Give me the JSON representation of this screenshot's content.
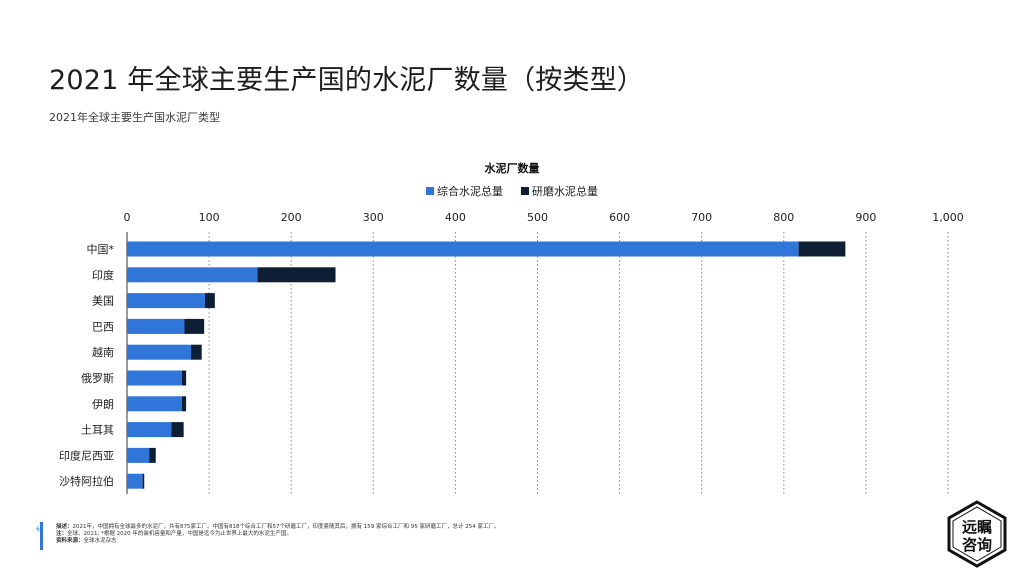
{
  "header": {
    "title": "2021 年全球主要生产国的水泥厂数量（按类型）",
    "subtitle": "2021年全球主要生产国水泥厂类型"
  },
  "chart_data": {
    "type": "bar",
    "orientation": "horizontal",
    "stacked": true,
    "title": "水泥厂数量",
    "categories": [
      "中国*",
      "印度",
      "美国",
      "巴西",
      "越南",
      "俄罗斯",
      "伊朗",
      "土耳其",
      "印度尼西亚",
      "沙特阿拉伯"
    ],
    "series": [
      {
        "name": "综合水泥总量",
        "color": "#2f76d8",
        "values": [
          818,
          159,
          95,
          70,
          78,
          67,
          67,
          54,
          27,
          19
        ]
      },
      {
        "name": "研磨水泥总量",
        "color": "#0e1e33",
        "values": [
          57,
          95,
          12,
          24,
          13,
          5,
          5,
          15,
          8,
          2
        ]
      }
    ],
    "xlim": [
      0,
      1000
    ],
    "x_ticks": [
      0,
      100,
      200,
      300,
      400,
      500,
      600,
      700,
      800,
      900,
      1000
    ],
    "x_tick_labels": [
      "0",
      "100",
      "200",
      "300",
      "400",
      "500",
      "600",
      "700",
      "800",
      "900",
      "1,000"
    ],
    "grid": true,
    "legend_position": "top-center"
  },
  "footer": {
    "page_number": "6",
    "desc_label": "描述：",
    "desc_text": "2021年，中国拥有全球最多的水泥厂，共有875家工厂。中国有818个综合工厂和57个研磨工厂，印度紧随其后，拥有 159 家综合工厂和 95 家研磨工厂，总计 254 家工厂。",
    "note_label": "注：",
    "note_text": "全球。2021; *根据 2020 年的装机容量和产量，中国是迄今为止世界上最大的水泥生产国。",
    "source_label": "资料来源：",
    "source_text": "全球水泥杂志"
  },
  "logo": {
    "line1": "远瞩",
    "line2": "咨询"
  }
}
